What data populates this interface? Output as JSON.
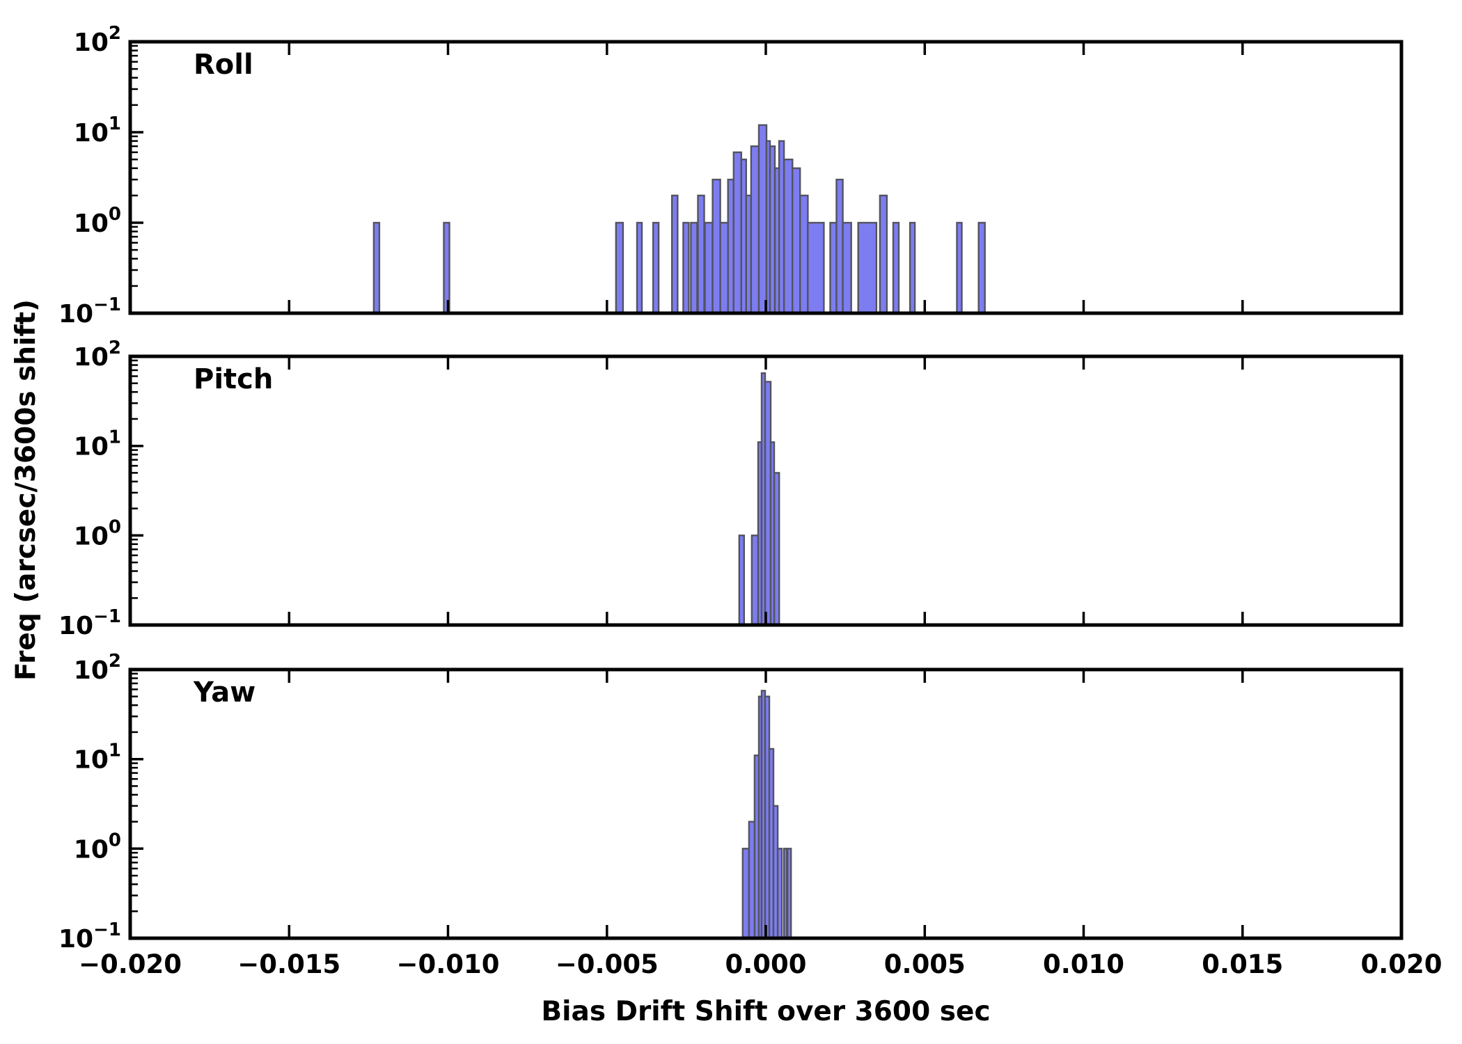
{
  "figure": {
    "xlabel": "Bias Drift Shift over 3600 sec",
    "ylabel": "Freq (arcsec/3600s shift)",
    "background": "#ffffff",
    "axis_color": "#000000",
    "text_color": "#000000",
    "bar_fill": "#7d7df1",
    "bar_edge": "#53535f",
    "x_range": [
      -0.02,
      0.02
    ],
    "x_tick_values": [
      -0.02,
      -0.015,
      -0.01,
      -0.005,
      0,
      0.005,
      0.01,
      0.015,
      0.02
    ],
    "x_tick_labels": [
      "−0.020",
      "−0.015",
      "−0.010",
      "−0.005",
      "0.000",
      "0.005",
      "0.010",
      "0.015",
      "0.020"
    ],
    "y_scale": "log",
    "y_range": [
      0.1,
      100
    ],
    "y_tick_exponents": [
      -1,
      0,
      1,
      2
    ],
    "y_tick_base": "10",
    "grid": "off",
    "legend": "none"
  },
  "chart_data": [
    {
      "type": "bar",
      "subtype": "histogram",
      "label": "Roll",
      "y_scale": "log",
      "ylim": [
        0.1,
        100
      ],
      "bins_format": [
        "x_left",
        "x_right",
        "count"
      ],
      "bins": [
        [
          -0.012335,
          -0.012159,
          1
        ],
        [
          -0.010132,
          -0.009956,
          1
        ],
        [
          -0.004714,
          -0.004493,
          1
        ],
        [
          -0.004053,
          -0.003899,
          1
        ],
        [
          -0.003546,
          -0.00337,
          1
        ],
        [
          -0.002952,
          -0.002775,
          2
        ],
        [
          -0.002599,
          -0.002423,
          1
        ],
        [
          -0.002356,
          -0.002158,
          1
        ],
        [
          -0.002136,
          -0.001938,
          2
        ],
        [
          -0.001916,
          -0.001674,
          1
        ],
        [
          -0.001674,
          -0.001432,
          3
        ],
        [
          -0.001432,
          -0.001189,
          1
        ],
        [
          -0.001189,
          -0.001013,
          3
        ],
        [
          -0.001013,
          -0.000771,
          6
        ],
        [
          -0.000771,
          -0.000617,
          5
        ],
        [
          -0.000617,
          -0.000463,
          2
        ],
        [
          -0.000463,
          -0.00022,
          7
        ],
        [
          -0.00022,
          2.2e-05,
          12
        ],
        [
          2.2e-05,
          0.000132,
          8
        ],
        [
          0.000132,
          0.000286,
          7
        ],
        [
          0.000286,
          0.000419,
          4
        ],
        [
          0.000419,
          0.000573,
          8
        ],
        [
          0.000573,
          0.000837,
          5
        ],
        [
          0.000837,
          0.001079,
          4
        ],
        [
          0.001079,
          0.001322,
          2
        ],
        [
          0.001322,
          0.001828,
          1
        ],
        [
          0.002026,
          0.002224,
          1
        ],
        [
          0.002224,
          0.002423,
          3
        ],
        [
          0.002423,
          0.002687,
          1
        ],
        [
          0.002907,
          0.00348,
          1
        ],
        [
          0.00359,
          0.00381,
          2
        ],
        [
          0.004009,
          0.004185,
          1
        ],
        [
          0.004537,
          0.004691,
          1
        ],
        [
          0.006013,
          0.006167,
          1
        ],
        [
          0.006696,
          0.006894,
          1
        ]
      ]
    },
    {
      "type": "bar",
      "subtype": "histogram",
      "label": "Pitch",
      "y_scale": "log",
      "ylim": [
        0.1,
        100
      ],
      "bins_format": [
        "x_left",
        "x_right",
        "count"
      ],
      "bins": [
        [
          -0.000837,
          -0.000683,
          1
        ],
        [
          -0.000441,
          -0.000242,
          1
        ],
        [
          -0.000242,
          -0.000132,
          11
        ],
        [
          -0.000132,
          -2.2e-05,
          65
        ],
        [
          -2.2e-05,
          0.000154,
          52
        ],
        [
          0.000154,
          0.000264,
          11
        ],
        [
          0.000264,
          0.000419,
          5
        ]
      ]
    },
    {
      "type": "bar",
      "subtype": "histogram",
      "label": "Yaw",
      "y_scale": "log",
      "ylim": [
        0.1,
        100
      ],
      "bins_format": [
        "x_left",
        "x_right",
        "count"
      ],
      "bins": [
        [
          -0.000727,
          -0.000529,
          1
        ],
        [
          -0.000529,
          -0.000353,
          2
        ],
        [
          -0.000353,
          -0.00022,
          11
        ],
        [
          -0.00022,
          -0.000132,
          50
        ],
        [
          -0.000132,
          -2.2e-05,
          58
        ],
        [
          -2.2e-05,
          0.00011,
          50
        ],
        [
          0.00011,
          0.000242,
          13
        ],
        [
          0.000242,
          0.000375,
          3
        ],
        [
          0.000375,
          0.000507,
          1
        ],
        [
          0.000573,
          0.000661,
          1
        ],
        [
          0.000683,
          0.000793,
          1
        ]
      ]
    }
  ]
}
